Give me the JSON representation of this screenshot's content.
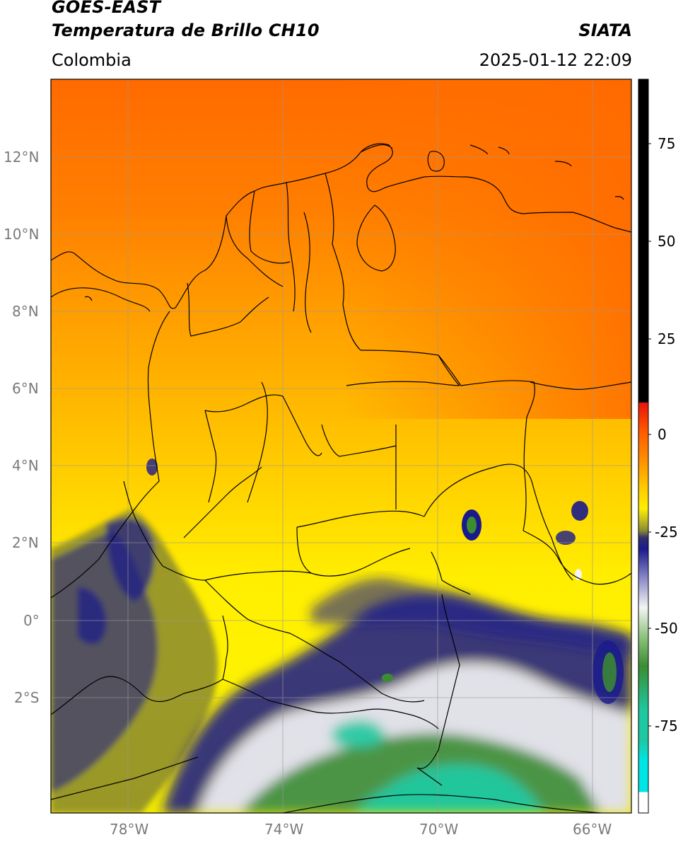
{
  "header": {
    "satellite": "GOES-EAST",
    "product": "Temperatura de Brillo CH10",
    "region": "Colombia",
    "source": "SIATA",
    "datetime": "2025-01-12 22:09"
  },
  "map": {
    "lat_range": [
      -4.99,
      14.0
    ],
    "lon_range": [
      -80.0,
      -65.0
    ],
    "lat_ticks": [
      "12°N",
      "10°N",
      "8°N",
      "6°N",
      "4°N",
      "2°N",
      "0°",
      "2°S"
    ],
    "lon_ticks": [
      "78°W",
      "74°W",
      "70°W",
      "66°W"
    ],
    "grid": true
  },
  "colorbar": {
    "range": [
      -95,
      90
    ],
    "ticks": [
      "75",
      "50",
      "25",
      "0",
      "-25",
      "-50",
      "-75"
    ],
    "colors": {
      "black": "#000000",
      "red": "#e8140c",
      "orange": "#ff7a00",
      "yellow": "#ffee00",
      "olive": "#8a8a30",
      "navy": "#1a1a8c",
      "white": "#f4f4f4",
      "green": "#3c8c32",
      "teal": "#1ec8a0",
      "cyan": "#00e6e6"
    }
  }
}
